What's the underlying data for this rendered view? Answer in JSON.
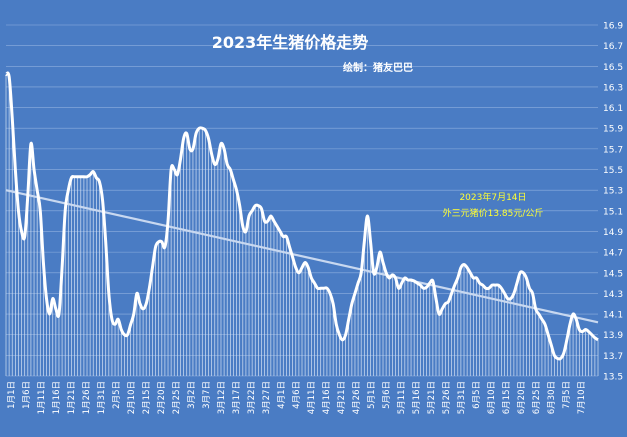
{
  "chart_data": {
    "type": "line",
    "title": "2023年生猪价格走势",
    "subtitle": "绘制：猪友巴巴",
    "annotation": [
      "2023年7月14日",
      "外三元猪价13.85元/公斤"
    ],
    "ylim": [
      13.5,
      16.9
    ],
    "y_ticks": [
      "13.5",
      "13.7",
      "13.9",
      "14.1",
      "14.3",
      "14.5",
      "14.7",
      "14.9",
      "15.1",
      "15.3",
      "15.5",
      "15.7",
      "15.9",
      "16.1",
      "16.3",
      "16.5",
      "16.7",
      "16.9"
    ],
    "x_tick_labels": [
      "1月1日",
      "1月6日",
      "1月11日",
      "1月16日",
      "1月21日",
      "1月26日",
      "1月31日",
      "2月5日",
      "2月10日",
      "2月15日",
      "2月20日",
      "2月25日",
      "3月2日",
      "3月7日",
      "3月12日",
      "3月17日",
      "3月22日",
      "3月27日",
      "4月1日",
      "4月6日",
      "4月11日",
      "4月16日",
      "4月21日",
      "4月26日",
      "5月1日",
      "5月6日",
      "5月11日",
      "5月16日",
      "5月21日",
      "5月26日",
      "5月31日",
      "6月5日",
      "6月10日",
      "6月15日",
      "6月20日",
      "6月25日",
      "6月30日",
      "7月5日",
      "7月10日"
    ],
    "x_first": "1月1日",
    "x_last": "7月14日",
    "series": [
      {
        "values": [
          16.42,
          16.4,
          16.0,
          15.5,
          15.1,
          14.9,
          14.85,
          15.25,
          15.75,
          15.5,
          15.3,
          15.1,
          14.6,
          14.25,
          14.1,
          14.25,
          14.15,
          14.1,
          14.55,
          15.1,
          15.3,
          15.42,
          15.43,
          15.43,
          15.43,
          15.43,
          15.43,
          15.45,
          15.48,
          15.42,
          15.38,
          15.2,
          14.8,
          14.3,
          14.05,
          14.0,
          14.05,
          13.95,
          13.9,
          13.9,
          14.0,
          14.1,
          14.3,
          14.2,
          14.15,
          14.2,
          14.35,
          14.55,
          14.75,
          14.8,
          14.8,
          14.75,
          15.0,
          15.5,
          15.5,
          15.45,
          15.6,
          15.8,
          15.85,
          15.7,
          15.7,
          15.85,
          15.9,
          15.9,
          15.88,
          15.8,
          15.65,
          15.55,
          15.6,
          15.75,
          15.7,
          15.55,
          15.5,
          15.4,
          15.3,
          15.15,
          14.95,
          14.9,
          15.05,
          15.1,
          15.15,
          15.15,
          15.12,
          15.0,
          15.0,
          15.05,
          15.0,
          14.95,
          14.9,
          14.85,
          14.85,
          14.75,
          14.65,
          14.55,
          14.5,
          14.55,
          14.6,
          14.55,
          14.45,
          14.4,
          14.35,
          14.35,
          14.35,
          14.35,
          14.3,
          14.2,
          14.0,
          13.9,
          13.85,
          13.9,
          14.05,
          14.2,
          14.3,
          14.4,
          14.5,
          14.8,
          15.05,
          14.8,
          14.5,
          14.55,
          14.7,
          14.6,
          14.5,
          14.45,
          14.48,
          14.45,
          14.35,
          14.4,
          14.45,
          14.43,
          14.43,
          14.42,
          14.4,
          14.38,
          14.35,
          14.36,
          14.4,
          14.42,
          14.25,
          14.1,
          14.15,
          14.2,
          14.22,
          14.3,
          14.38,
          14.45,
          14.55,
          14.58,
          14.55,
          14.5,
          14.45,
          14.45,
          14.4,
          14.38,
          14.35,
          14.35,
          14.38,
          14.38,
          14.38,
          14.35,
          14.3,
          14.25,
          14.25,
          14.3,
          14.4,
          14.5,
          14.5,
          14.45,
          14.35,
          14.3,
          14.15,
          14.1,
          14.05,
          14.0,
          13.9,
          13.8,
          13.7,
          13.67,
          13.67,
          13.72,
          13.85,
          14.0,
          14.1,
          14.05,
          13.95,
          13.93,
          13.95,
          13.93,
          13.9,
          13.87,
          13.85
        ]
      },
      {
        "name": "",
        "trend": true,
        "values": [
          15.3,
          14.02
        ]
      }
    ],
    "grid": true,
    "legend": "none"
  }
}
